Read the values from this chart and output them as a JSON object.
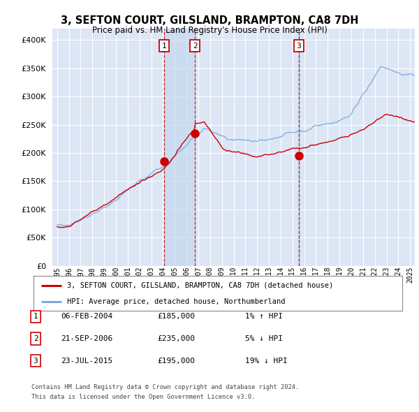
{
  "title": "3, SEFTON COURT, GILSLAND, BRAMPTON, CA8 7DH",
  "subtitle": "Price paid vs. HM Land Registry's House Price Index (HPI)",
  "legend_line1": "3, SEFTON COURT, GILSLAND, BRAMPTON, CA8 7DH (detached house)",
  "legend_line2": "HPI: Average price, detached house, Northumberland",
  "footnote1": "Contains HM Land Registry data © Crown copyright and database right 2024.",
  "footnote2": "This data is licensed under the Open Government Licence v3.0.",
  "transactions": [
    {
      "label": "1",
      "date": "06-FEB-2004",
      "price": 185000,
      "pct": "1%",
      "dir": "↑"
    },
    {
      "label": "2",
      "date": "21-SEP-2006",
      "price": 235000,
      "pct": "5%",
      "dir": "↓"
    },
    {
      "label": "3",
      "date": "23-JUL-2015",
      "price": 195000,
      "pct": "19%",
      "dir": "↓"
    }
  ],
  "transaction_dates_num": [
    2004.09,
    2006.72,
    2015.55
  ],
  "transaction_prices": [
    185000,
    235000,
    195000
  ],
  "price_line_color": "#cc0000",
  "hpi_line_color": "#7aaadd",
  "background_color": "#ffffff",
  "plot_bg_color": "#dce6f5",
  "grid_color": "#ffffff",
  "vline_color": "#cc0000",
  "box_color": "#cc0000",
  "shade_color": "#c5d8f0",
  "ylim": [
    0,
    420000
  ],
  "yticks": [
    0,
    50000,
    100000,
    150000,
    200000,
    250000,
    300000,
    350000,
    400000
  ],
  "xlim_start": 1994.6,
  "xlim_end": 2025.4
}
